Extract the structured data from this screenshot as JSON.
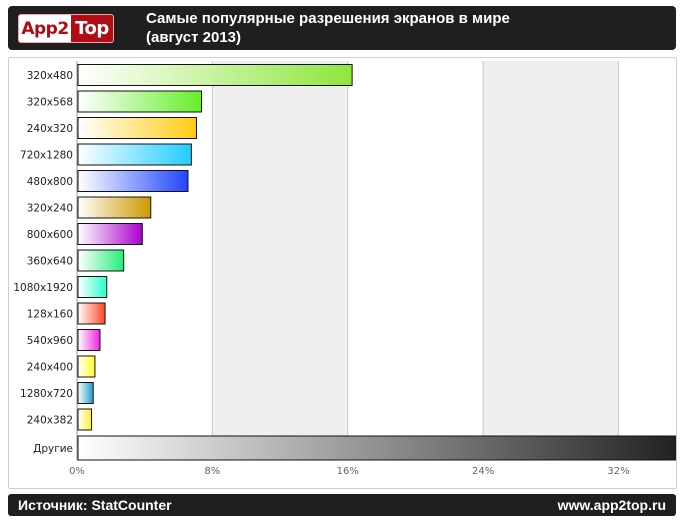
{
  "header": {
    "logo_left": "App2",
    "logo_right": "Top",
    "title_line1": "Самые популярные разрешения экранов в мире",
    "title_line2": "(август 2013)"
  },
  "footer": {
    "source": "Источник: StatCounter",
    "site": "www.app2top.ru"
  },
  "chart_data": {
    "type": "bar",
    "orientation": "horizontal",
    "categories": [
      "320x480",
      "320x568",
      "240x320",
      "720x1280",
      "480x800",
      "320x240",
      "800x600",
      "360x640",
      "1080x1920",
      "128x160",
      "540x960",
      "240x400",
      "1280x720",
      "240x382",
      "Другие"
    ],
    "values": [
      16.2,
      7.3,
      7.0,
      6.7,
      6.5,
      4.3,
      3.8,
      2.7,
      1.7,
      1.6,
      1.3,
      1.0,
      0.9,
      0.8,
      36.0
    ],
    "colors": [
      "#8ee63c",
      "#66ee2a",
      "#ffcc11",
      "#22ccff",
      "#2244ff",
      "#cc9900",
      "#aa00cc",
      "#22ee77",
      "#22ffcc",
      "#ff4422",
      "#ee22dd",
      "#ffff22",
      "#2299cc",
      "#ffee33",
      "#222222"
    ],
    "x_ticks": [
      "0%",
      "8%",
      "16%",
      "24%",
      "32%"
    ],
    "xlim": [
      0,
      35.4
    ],
    "grid": true,
    "alternating_bands": true
  }
}
